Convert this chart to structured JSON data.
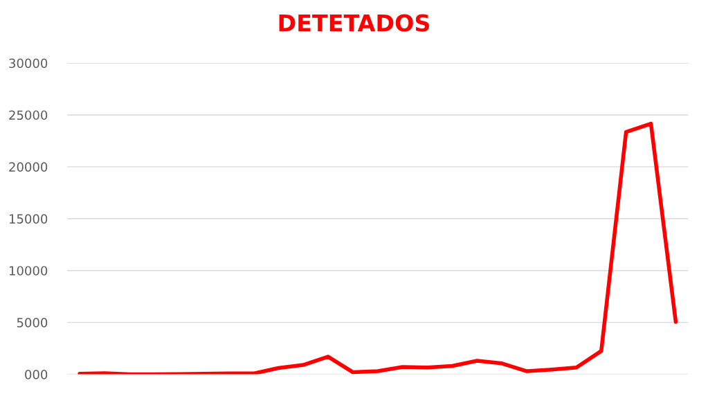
{
  "chart_data": {
    "type": "line",
    "title": "DETETADOS",
    "categories": [
      null,
      null,
      null,
      null,
      null,
      null,
      null,
      null,
      null,
      null,
      null,
      null,
      null,
      null,
      null,
      null,
      null,
      null,
      null,
      null,
      null,
      null,
      null,
      null,
      null
    ],
    "series": [
      {
        "color": "#ff0000",
        "values": [
          50,
          100,
          0,
          0,
          20,
          50,
          80,
          80,
          600,
          900,
          1700,
          200,
          300,
          700,
          650,
          800,
          1300,
          1050,
          300,
          450,
          650,
          2250,
          23350,
          24150,
          5050
        ]
      }
    ],
    "ylim": [
      0,
      30000
    ],
    "yticks": [
      {
        "value": 0,
        "label": "000"
      },
      5000,
      10000,
      15000,
      20000,
      25000,
      30000
    ],
    "grid": "y",
    "line_style": "solid",
    "marker": "none"
  }
}
